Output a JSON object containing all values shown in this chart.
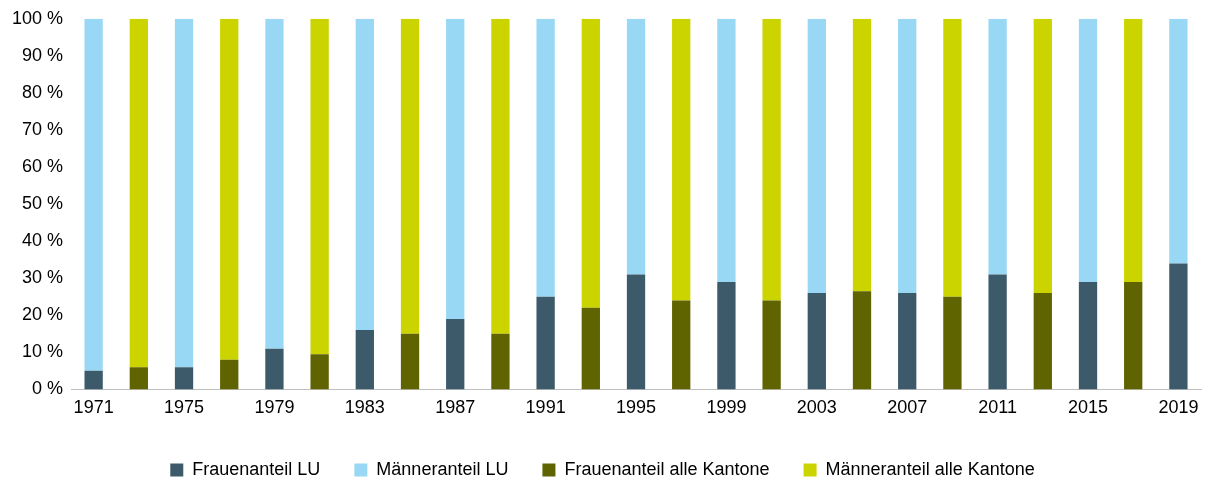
{
  "chart_data": {
    "type": "bar",
    "stacked": true,
    "legend": "bottom",
    "grid": false,
    "categories": [
      "1971",
      null,
      "1975",
      null,
      "1979",
      null,
      "1983",
      null,
      "1987",
      null,
      "1991",
      null,
      "1995",
      null,
      "1999",
      null,
      "2003",
      null,
      "2007",
      null,
      "2011",
      null,
      "2015",
      null,
      "2019"
    ],
    "ylim": [
      0,
      100
    ],
    "yticks": [
      {
        "value": 0,
        "label": "0 %"
      },
      {
        "value": 10,
        "label": "10 %"
      },
      {
        "value": 20,
        "label": "20 %"
      },
      {
        "value": 30,
        "label": "30 %"
      },
      {
        "value": 40,
        "label": "40 %"
      },
      {
        "value": 50,
        "label": "50 %"
      },
      {
        "value": 60,
        "label": "60 %"
      },
      {
        "value": 70,
        "label": "70 %"
      },
      {
        "value": 80,
        "label": "80 %"
      },
      {
        "value": 90,
        "label": "90 %"
      },
      {
        "value": 100,
        "label": "100 %"
      }
    ],
    "series": [
      {
        "name": "Frauenanteil LU",
        "color": "#3d5a6b",
        "values": [
          5,
          null,
          6,
          null,
          11,
          null,
          16,
          null,
          19,
          null,
          25,
          null,
          31,
          null,
          29,
          null,
          26,
          null,
          26,
          null,
          31,
          null,
          29,
          null,
          34
        ]
      },
      {
        "name": "Männeranteil LU",
        "color": "#99d8f5",
        "values": [
          95,
          null,
          94,
          null,
          89,
          null,
          84,
          null,
          81,
          null,
          75,
          null,
          69,
          null,
          71,
          null,
          74,
          null,
          74,
          null,
          69,
          null,
          71,
          null,
          66
        ]
      },
      {
        "name": "Frauenanteil alle Kantone",
        "color": "#5f6400",
        "values": [
          null,
          6,
          null,
          8,
          null,
          9.5,
          null,
          15,
          null,
          15,
          null,
          22,
          null,
          24,
          null,
          24,
          null,
          26.5,
          null,
          25,
          null,
          26,
          null,
          29,
          null
        ]
      },
      {
        "name": "Männeranteil alle Kantone",
        "color": "#ccd400",
        "values": [
          null,
          94,
          null,
          92,
          null,
          90.5,
          null,
          85,
          null,
          85,
          null,
          78,
          null,
          76,
          null,
          76,
          null,
          73.5,
          null,
          75,
          null,
          74,
          null,
          71,
          null
        ]
      }
    ]
  }
}
